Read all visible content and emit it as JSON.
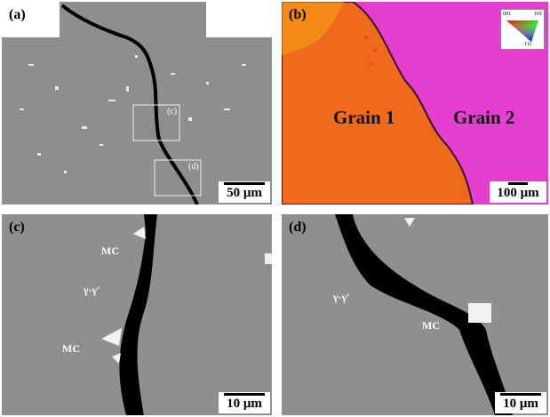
{
  "panels": {
    "a": {
      "label": "(a)",
      "scale": "50 μm",
      "roi_c": "(c)",
      "roi_d": "(d)"
    },
    "b": {
      "label": "(b)",
      "scale": "100 μm",
      "grain1": "Grain 1",
      "grain2": "Grain 2",
      "key": {
        "k001": "001",
        "k101": "101",
        "k111": "111"
      }
    },
    "c": {
      "label": "(c)",
      "scale": "10 μm",
      "mc_top": "MC",
      "gamma": "γ-γ'",
      "mc_bottom": "MC"
    },
    "d": {
      "label": "(d)",
      "scale": "10 μm",
      "gamma": "γ-γ'",
      "mc": "MC"
    }
  },
  "colors": {
    "sem_gray": "#8c8c8c",
    "grain1_orange": "#f06a1c",
    "grain2_magenta": "#e53fcf",
    "crack_black": "#000000"
  }
}
